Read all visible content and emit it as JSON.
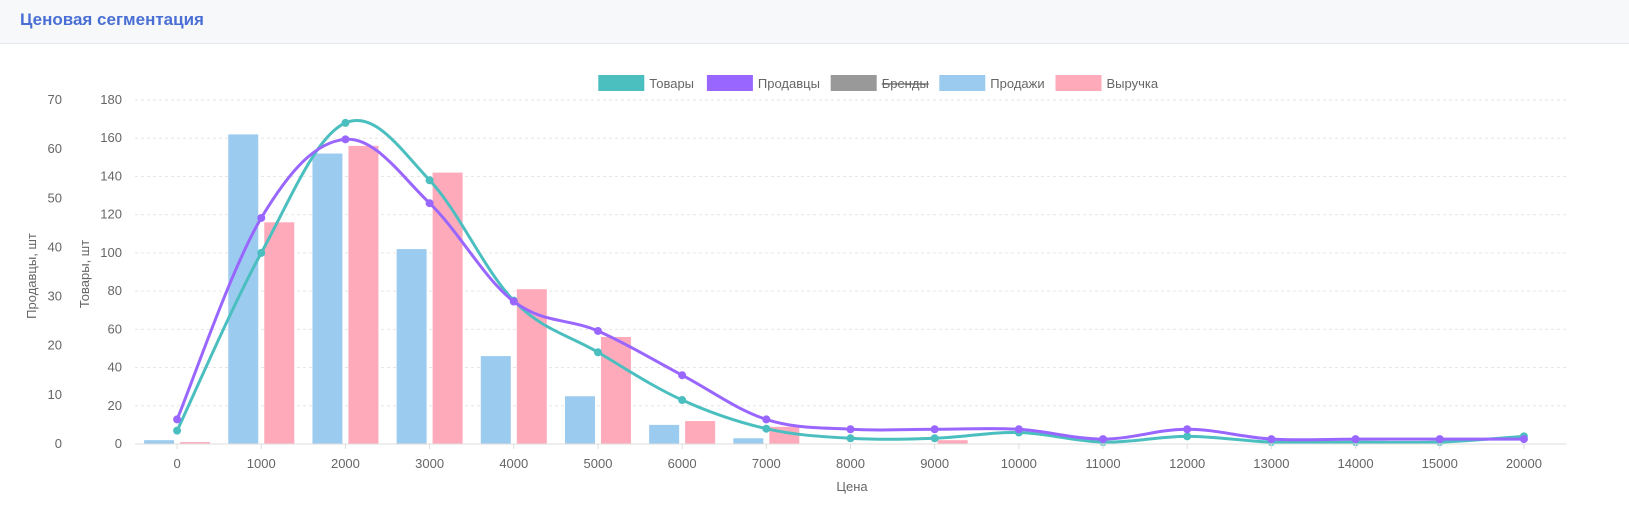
{
  "header": {
    "title": "Ценовая сегментация"
  },
  "chart_data": {
    "type": "bar",
    "x": [
      0,
      1000,
      2000,
      3000,
      4000,
      5000,
      6000,
      7000,
      8000,
      9000,
      10000,
      11000,
      12000,
      13000,
      14000,
      15000,
      20000
    ],
    "xlabel": "Цена",
    "y_left_outer_label": "Продавцы, шт",
    "y_left_inner_label": "Товары, шт",
    "y_outer_ticks": [
      "70",
      "60",
      "50",
      "40",
      "30",
      "20",
      "10",
      "0"
    ],
    "y_inner_ticks": [
      "180",
      "160",
      "140",
      "120",
      "100",
      "80",
      "60",
      "40",
      "20",
      "0"
    ],
    "y_outer_range": [
      0,
      70
    ],
    "y_inner_range": [
      0,
      180
    ],
    "grid": "horizontal dashed",
    "legend_position": "top",
    "legend": [
      {
        "name": "Товары",
        "color": "#4bbfbf",
        "hidden": false
      },
      {
        "name": "Продавцы",
        "color": "#9966ff",
        "hidden": false
      },
      {
        "name": "Бренды",
        "color": "#999999",
        "hidden": true
      },
      {
        "name": "Продажи",
        "color": "#9ccbf0",
        "hidden": false
      },
      {
        "name": "Выручка",
        "color": "#ffaabb",
        "hidden": false
      }
    ],
    "series": [
      {
        "name": "Товары",
        "type": "line",
        "axis": "inner",
        "color": "#4bbfbf",
        "values": [
          7,
          100,
          168,
          138,
          75,
          48,
          23,
          8,
          3,
          3,
          6,
          1,
          4,
          1,
          1,
          1,
          4
        ]
      },
      {
        "name": "Продавцы",
        "type": "line",
        "axis": "outer",
        "color": "#9966ff",
        "values": [
          5,
          46,
          62,
          49,
          29,
          23,
          14,
          5,
          3,
          3,
          3,
          1,
          3,
          1,
          1,
          1,
          1
        ]
      },
      {
        "name": "Продажи",
        "type": "bar",
        "axis": "inner",
        "color": "#9ccbf0",
        "values": [
          2,
          162,
          152,
          102,
          46,
          25,
          10,
          3,
          0,
          0,
          0,
          0,
          0,
          0,
          0,
          0,
          0
        ]
      },
      {
        "name": "Выручка",
        "type": "bar",
        "axis": "inner",
        "color": "#ffaabb",
        "values": [
          1,
          116,
          156,
          142,
          81,
          56,
          12,
          9,
          0,
          2,
          0,
          0,
          0,
          0,
          0,
          0,
          0
        ]
      }
    ]
  }
}
